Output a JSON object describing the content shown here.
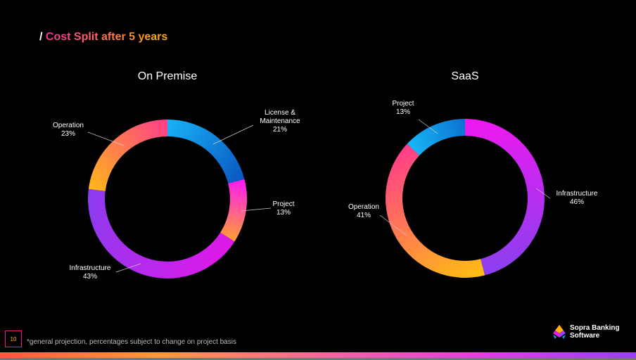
{
  "slide": {
    "title_prefix": "/",
    "title": "Cost Split after 5 years",
    "page_number": "10",
    "footnote": "*general projection, percentages subject to change on project basis",
    "logo_text": [
      "Sopra Banking",
      "Software"
    ]
  },
  "chart_data": [
    {
      "type": "pie",
      "donut": true,
      "title": "On Premise",
      "categories": [
        "License & Maintenance",
        "Project",
        "Infrastructure",
        "Operation"
      ],
      "values": [
        21,
        13,
        43,
        23
      ],
      "labels": [
        "21%",
        "13%",
        "43%",
        "23%"
      ],
      "colors": [
        [
          "#19b4f8",
          "#0a55c0"
        ],
        [
          "#ff18f8",
          "#ffa030"
        ],
        [
          "#e018e8",
          "#8a3cf0"
        ],
        [
          "#ffb818",
          "#ff3c8c"
        ]
      ]
    },
    {
      "type": "pie",
      "donut": true,
      "title": "SaaS",
      "categories": [
        "Infrastructure",
        "Operation",
        "Project"
      ],
      "values": [
        46,
        41,
        13
      ],
      "labels": [
        "46%",
        "41%",
        "13%"
      ],
      "colors": [
        [
          "#f018f0",
          "#8a40f0"
        ],
        [
          "#ffc010",
          "#ff3c8c"
        ],
        [
          "#1ab8f8",
          "#0a70d0"
        ]
      ]
    }
  ]
}
